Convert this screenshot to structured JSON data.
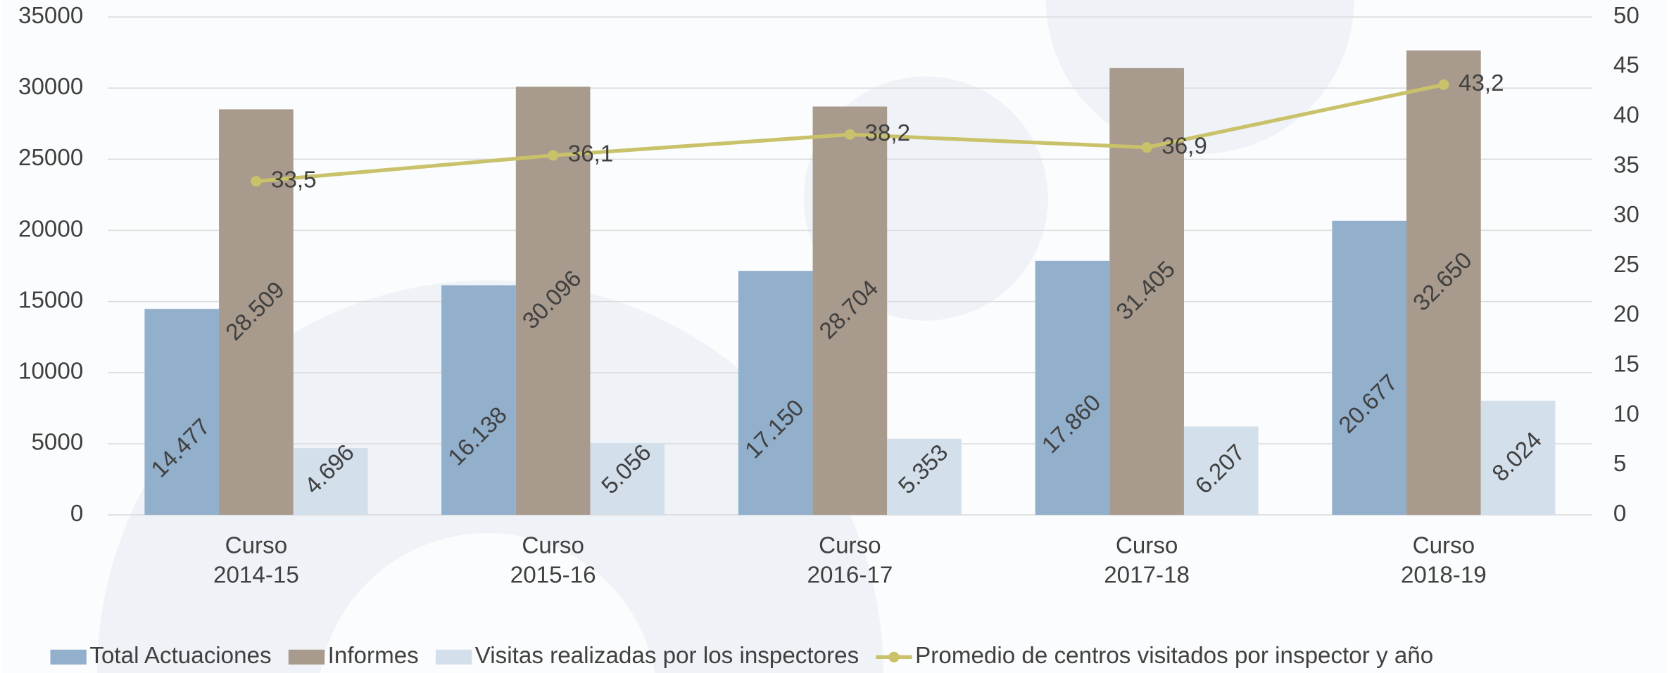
{
  "chart_data": {
    "type": "bar",
    "categories": [
      "Curso 2014-15",
      "Curso 2015-16",
      "Curso 2016-17",
      "Curso 2017-18",
      "Curso 2018-19"
    ],
    "series": [
      {
        "name": "Total Actuaciones",
        "color": "#92afcc",
        "values": [
          14477,
          16138,
          17150,
          17860,
          20677
        ],
        "value_labels": [
          "14.477",
          "16.138",
          "17.150",
          "17.860",
          "20.677"
        ]
      },
      {
        "name": "Informes",
        "color": "#a89a8c",
        "values": [
          28509,
          30096,
          28704,
          31405,
          32650
        ],
        "value_labels": [
          "28.509",
          "30.096",
          "28.704",
          "31.405",
          "32.650"
        ]
      },
      {
        "name": "Visitas realizadas por los inspectores",
        "color": "#d3dfeb",
        "values": [
          4696,
          5056,
          5353,
          6207,
          8024
        ],
        "value_labels": [
          "4.696",
          "5.056",
          "5.353",
          "6.207",
          "8.024"
        ]
      },
      {
        "name": "Promedio de centros visitados por inspector y año",
        "color": "#c9c26a",
        "type": "line",
        "axis": "y2",
        "values": [
          33.5,
          36.1,
          38.2,
          36.9,
          43.2
        ],
        "value_labels": [
          "33,5",
          "36,1",
          "38,2",
          "36,9",
          "43,2"
        ]
      }
    ],
    "ylim": [
      0,
      35000
    ],
    "yticks": [
      0,
      5000,
      10000,
      15000,
      20000,
      25000,
      30000,
      35000
    ],
    "y2lim": [
      0,
      50
    ],
    "y2ticks": [
      0,
      5,
      10,
      15,
      20,
      25,
      30,
      35,
      40,
      45,
      50
    ],
    "grid": true,
    "legend": "bottom"
  }
}
